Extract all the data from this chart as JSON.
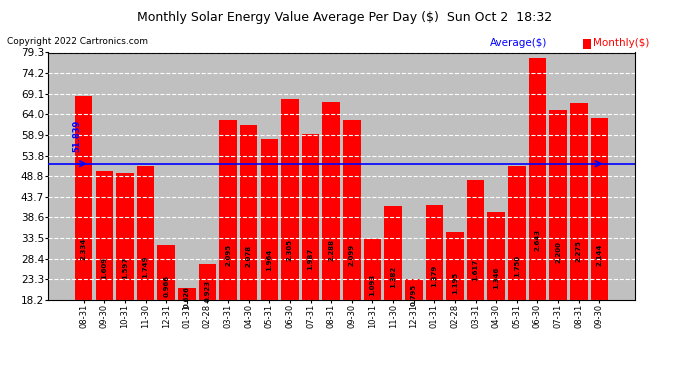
{
  "title": "Monthly Solar Energy Value Average Per Day ($)  Sun Oct 2  18:32",
  "copyright": "Copyright 2022 Cartronics.com",
  "categories": [
    "08-31",
    "09-30",
    "10-31",
    "11-30",
    "12-31",
    "01-31",
    "02-28",
    "03-31",
    "04-30",
    "05-31",
    "06-30",
    "07-31",
    "08-31",
    "09-30",
    "10-31",
    "11-30",
    "12-31",
    "01-31",
    "02-28",
    "03-31",
    "04-30",
    "05-31",
    "06-30",
    "07-31",
    "08-31",
    "09-30"
  ],
  "bar_values_label": [
    2.334,
    1.609,
    1.597,
    1.749,
    0.966,
    0.626,
    0.923,
    2.095,
    2.078,
    1.964,
    2.305,
    1.987,
    2.288,
    2.099,
    1.093,
    1.382,
    0.795,
    1.379,
    1.195,
    1.617,
    1.346,
    1.75,
    2.643,
    2.2,
    2.275,
    2.144
  ],
  "bar_heights": [
    68.62,
    50.04,
    49.67,
    51.37,
    31.7,
    21.06,
    27.05,
    62.62,
    61.29,
    57.98,
    67.81,
    59.07,
    67.17,
    62.7,
    33.31,
    41.44,
    23.37,
    41.7,
    35.11,
    47.94,
    39.85,
    51.39,
    77.93,
    65.14,
    66.93,
    63.2
  ],
  "bar_color": "#ff0000",
  "average_line": 51.839,
  "average_line_label": "51.839",
  "average_line_color": "#0000ff",
  "y_min": 18.2,
  "y_max": 79.3,
  "y_ticks": [
    18.2,
    23.3,
    28.4,
    33.5,
    38.6,
    43.7,
    48.8,
    53.8,
    58.9,
    64.0,
    69.1,
    74.2,
    79.3
  ],
  "legend_average_label": "Average($)",
  "legend_monthly_label": "Monthly($)",
  "legend_average_color": "#0000ff",
  "legend_monthly_color": "#ff0000",
  "background_color": "#ffffff",
  "grid_color": "#ffffff",
  "plot_bg_color": "#c0c0c0",
  "title_color": "#000000",
  "copyright_color": "#000000",
  "bar_label_color": "#000000"
}
